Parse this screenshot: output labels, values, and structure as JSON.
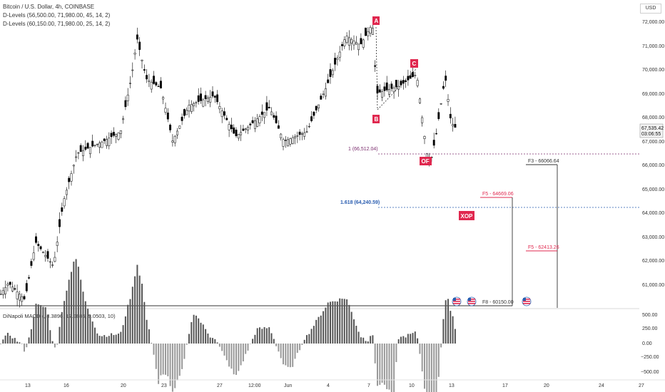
{
  "header": {
    "title": "Bitcoin / U.S. Dollar, 4h, COINBASE",
    "indicators": [
      "D-Levels (56,500.00, 71,980.00, 45, 14, 2)",
      "D-Levels (60,150.00, 71,980.00, 25, 14, 2)"
    ],
    "currency": "USD"
  },
  "macd_label": "DiNapoli MACD (, 8.3896, 17.9885, 9.0503, 10)",
  "price_axis_labels": [
    "72,000.00",
    "71,000.00",
    "70,000.00",
    "69,000.00",
    "68,000.00",
    "67,000.00",
    "66,000.00",
    "65,000.00",
    "64,000.00",
    "63,000.00",
    "62,000.00",
    "61,000.00"
  ],
  "macd_axis_labels": [
    "500.00",
    "250.00",
    "0.00",
    "−250.00",
    "−500.00"
  ],
  "time_labels": [
    "13",
    "16",
    "20",
    "23",
    "27",
    "12:00",
    "Jun",
    "4",
    "7",
    "10",
    "13",
    "17",
    "20",
    "24",
    "27"
  ],
  "last_price": {
    "value": "67,535.42",
    "countdown": "03:06:55"
  },
  "patterns": [
    {
      "label": "A"
    },
    {
      "label": "B"
    },
    {
      "label": "C"
    },
    {
      "label": "OF"
    },
    {
      "label": "XOP"
    }
  ],
  "levels": [
    {
      "label": "1 (66,512.04)",
      "price": 66512.04,
      "color": "#7b2d6e"
    },
    {
      "label": "1.618 (64,240.59)",
      "price": 64240.59,
      "color": "#2a5db0"
    },
    {
      "label": "F3 - 66066.64",
      "price": 66066.64,
      "color": "#333333"
    },
    {
      "label": "F5 - 64669.06",
      "price": 64669.06,
      "color": "#e0284f"
    },
    {
      "label": "F5 - 62413.26",
      "price": 62413.26,
      "color": "#e0284f"
    },
    {
      "label": "F8 - 60150.00",
      "price": 60150.0,
      "color": "#333333"
    }
  ],
  "colors": {
    "accent": "#e0284f",
    "up": "#ffffff",
    "down": "#000000"
  },
  "chart_data": {
    "type": "candlestick",
    "title": "Bitcoin / U.S. Dollar, 4h, COINBASE",
    "ylim": [
      60150,
      72200
    ],
    "macd_ylim": [
      -600,
      600
    ],
    "candles_summary": [
      {
        "x": "13",
        "close": 60400
      },
      {
        "x": "16",
        "close": 64500
      },
      {
        "x": "20",
        "close": 71300
      },
      {
        "x": "23",
        "close": 68500
      },
      {
        "x": "27",
        "close": 68900
      },
      {
        "x": "Jun",
        "close": 67600
      },
      {
        "x": "4",
        "close": 69300
      },
      {
        "x": "7",
        "close": 71900
      },
      {
        "x": "10",
        "close": 69500
      },
      {
        "x": "13",
        "close": 67535
      }
    ]
  }
}
